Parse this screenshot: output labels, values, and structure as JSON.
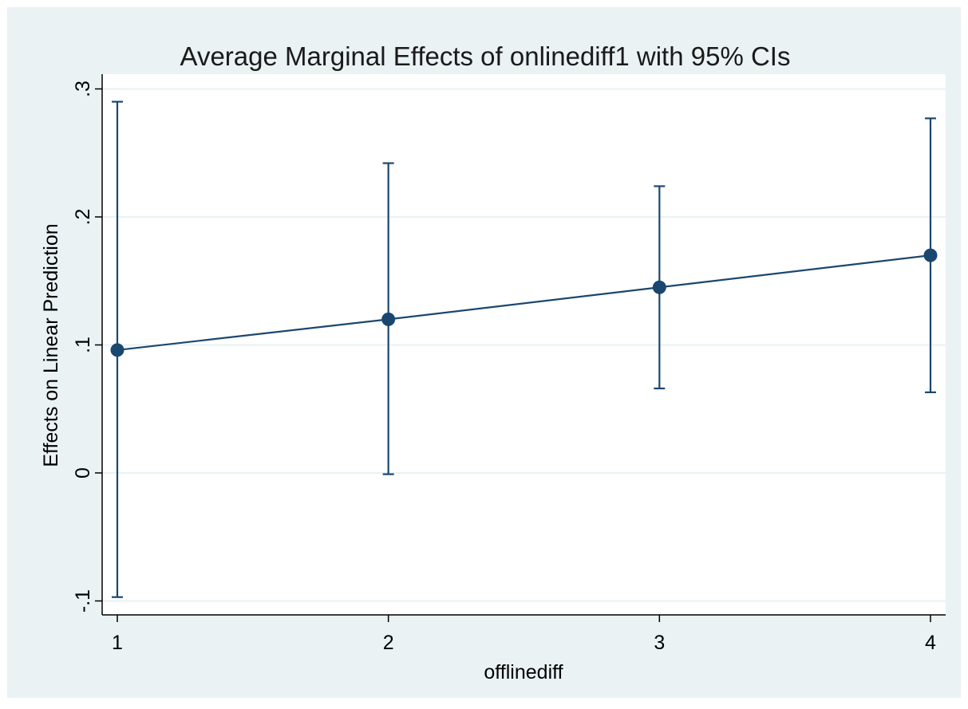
{
  "chart_data": {
    "type": "line",
    "title": "Average Marginal Effects of onlinediff1 with 95% CIs",
    "xlabel": "offlinediff",
    "ylabel": "Effects on Linear Prediction",
    "x": [
      1,
      2,
      3,
      4
    ],
    "series": [
      {
        "values": [
          0.096,
          0.12,
          0.145,
          0.17
        ],
        "ci_lower": [
          -0.097,
          -0.001,
          0.066,
          0.063
        ],
        "ci_upper": [
          0.29,
          0.242,
          0.224,
          0.277
        ]
      }
    ],
    "xlim": [
      0.95,
      4.05
    ],
    "ylim": [
      -0.11,
      0.3
    ],
    "xticks": [
      1,
      2,
      3,
      4
    ],
    "xtick_labels": [
      "1",
      "2",
      "3",
      "4"
    ],
    "yticks": [
      -0.1,
      0,
      0.1,
      0.2,
      0.3
    ],
    "ytick_labels": [
      "-.1",
      "0",
      ".1",
      ".2",
      ".3"
    ],
    "grid": "horizontal",
    "colors": {
      "outer_background": "#eaf2f3",
      "plot_background": "#ffffff",
      "gridline": "#eaf2f3",
      "series": "#1a476f",
      "axis": "#000000"
    }
  }
}
